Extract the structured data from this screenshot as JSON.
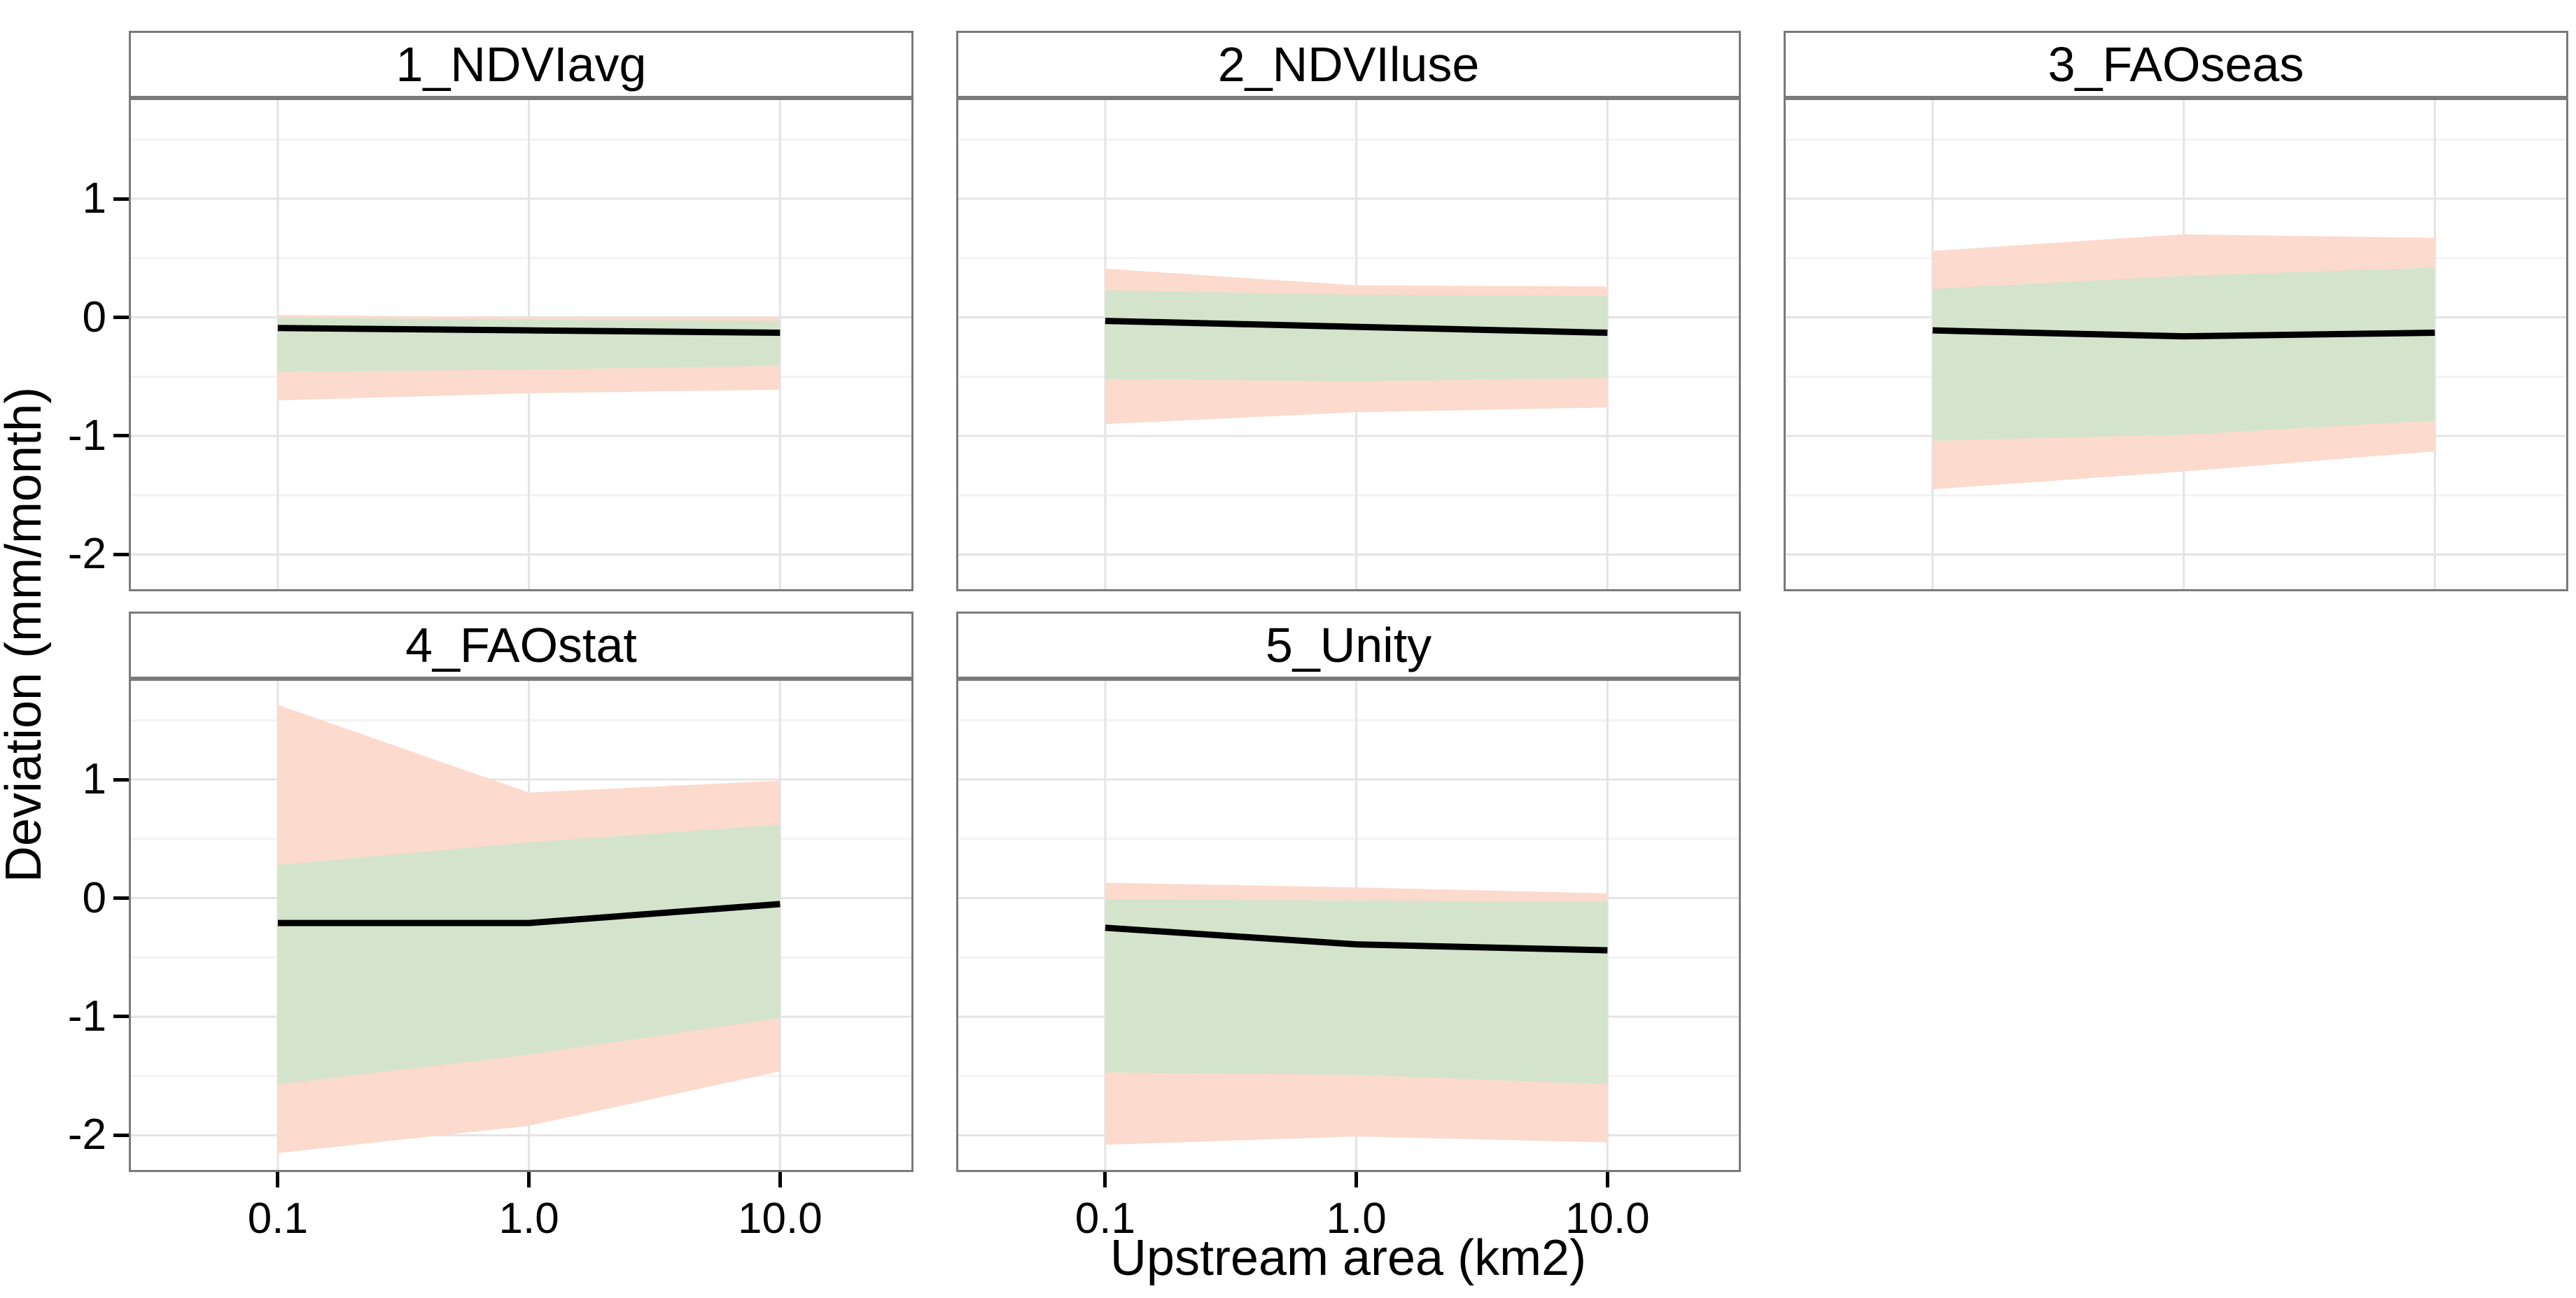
{
  "chart_data": {
    "type": "area",
    "title": "",
    "xlabel": "Upstream area (km2)",
    "ylabel": "Deviation (mm/month)",
    "x_scale": "log10",
    "xlim": [
      0.0255,
      34
    ],
    "ylim": [
      -2.31,
      1.85
    ],
    "grid": true,
    "legend": "none",
    "x_ticks": [
      {
        "v": 0.1,
        "label": "0.1"
      },
      {
        "v": 1,
        "label": "1.0"
      },
      {
        "v": 10,
        "label": "10.0"
      }
    ],
    "y_ticks": [
      {
        "v": 1,
        "label": "1"
      },
      {
        "v": 0,
        "label": "0"
      },
      {
        "v": -1,
        "label": "-1"
      },
      {
        "v": -2,
        "label": "-2"
      }
    ],
    "y_minor": [
      1.5,
      0.5,
      -0.5,
      -1.5
    ],
    "x_grid_major": [
      0.1,
      1,
      10
    ],
    "colors": {
      "line": "#000000",
      "inner_band": "#d4e4cc",
      "outer_band": "#fcdacd",
      "grid_major": "#e4e4e4",
      "grid_minor": "#f3f3f3",
      "panel_border": "#7a7a7a",
      "strip_bg": "#ffffff",
      "background": "#ffffff",
      "tick": "#000000"
    },
    "facets": [
      {
        "label": "1_NDVIavg",
        "x": [
          0.1,
          1,
          10
        ],
        "line": [
          -0.09,
          -0.11,
          -0.13
        ],
        "inner_upper": [
          0.0,
          -0.02,
          -0.03
        ],
        "inner_lower": [
          -0.46,
          -0.44,
          -0.41
        ],
        "outer_upper": [
          0.02,
          0.0,
          0.0
        ],
        "outer_lower": [
          -0.7,
          -0.64,
          -0.61
        ]
      },
      {
        "label": "2_NDVIluse",
        "x": [
          0.1,
          1,
          10
        ],
        "line": [
          -0.03,
          -0.08,
          -0.13
        ],
        "inner_upper": [
          0.23,
          0.19,
          0.18
        ],
        "inner_lower": [
          -0.52,
          -0.54,
          -0.51
        ],
        "outer_upper": [
          0.41,
          0.27,
          0.26
        ],
        "outer_lower": [
          -0.9,
          -0.8,
          -0.76
        ]
      },
      {
        "label": "3_FAOseas",
        "x": [
          0.1,
          1,
          10
        ],
        "line": [
          -0.11,
          -0.16,
          -0.13
        ],
        "inner_upper": [
          0.24,
          0.35,
          0.42
        ],
        "inner_lower": [
          -1.04,
          -0.99,
          -0.87
        ],
        "outer_upper": [
          0.56,
          0.7,
          0.67
        ],
        "outer_lower": [
          -1.45,
          -1.3,
          -1.13
        ]
      },
      {
        "label": "4_FAOstat",
        "x": [
          0.1,
          1,
          10
        ],
        "line": [
          -0.21,
          -0.21,
          -0.05
        ],
        "inner_upper": [
          0.28,
          0.47,
          0.62
        ],
        "inner_lower": [
          -1.57,
          -1.32,
          -1.01
        ],
        "outer_upper": [
          1.63,
          0.89,
          0.99
        ],
        "outer_lower": [
          -2.15,
          -1.92,
          -1.46
        ]
      },
      {
        "label": "5_Unity",
        "x": [
          0.1,
          1,
          10
        ],
        "line": [
          -0.25,
          -0.39,
          -0.44
        ],
        "inner_upper": [
          -0.01,
          -0.02,
          -0.03
        ],
        "inner_lower": [
          -1.47,
          -1.49,
          -1.57
        ],
        "outer_upper": [
          0.13,
          0.09,
          0.04
        ],
        "outer_lower": [
          -2.08,
          -2.01,
          -2.06
        ]
      }
    ]
  }
}
